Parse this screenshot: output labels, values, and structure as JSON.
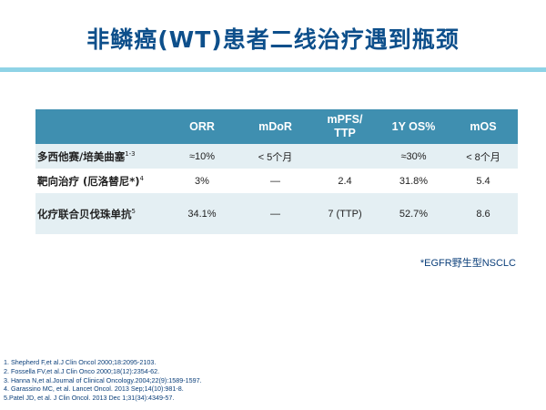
{
  "slide": {
    "title": "非鳞癌(WT)患者二线治疗遇到瓶颈",
    "accent_color": "#8fd3e6",
    "title_color": "#0d4f8b",
    "header_bg": "#3f8fb0"
  },
  "table": {
    "headers": [
      "",
      "ORR",
      "mDoR",
      "mPFS/\nTTP",
      "1Y OS%",
      "mOS"
    ],
    "rows": [
      {
        "label": "多西他赛/培美曲塞",
        "sup": "1-3",
        "cells": [
          "≈10%",
          "< 5个月",
          "",
          "≈30%",
          "< 8个月"
        ]
      },
      {
        "label": "靶向治疗 (厄洛替尼*)",
        "sup": "4",
        "cells": [
          "3%",
          "—",
          "2.4",
          "31.8%",
          "5.4"
        ]
      },
      {
        "label": "化疗联合贝伐珠单抗",
        "sup": "5",
        "cells": [
          "34.1%",
          "—",
          "7 (TTP)",
          "52.7%",
          "8.6"
        ]
      }
    ]
  },
  "note": "*EGFR野生型NSCLC",
  "references": [
    "1.  Shepherd F,et al.J Clin Oncol 2000;18:2095-2103.",
    "2.  Fossella FV,et al.J Clin Onco 2000;18(12):2354-62.",
    "3.  Hanna N,et al.Journal of Clinical Oncology.2004;22(9):1589-1597.",
    "4.  Garassino MC, et al. Lancet Oncol. 2013 Sep;14(10):981-8.",
    "5.Patel JD, et al. J Clin Oncol. 2013 Dec 1;31(34):4349-57."
  ]
}
